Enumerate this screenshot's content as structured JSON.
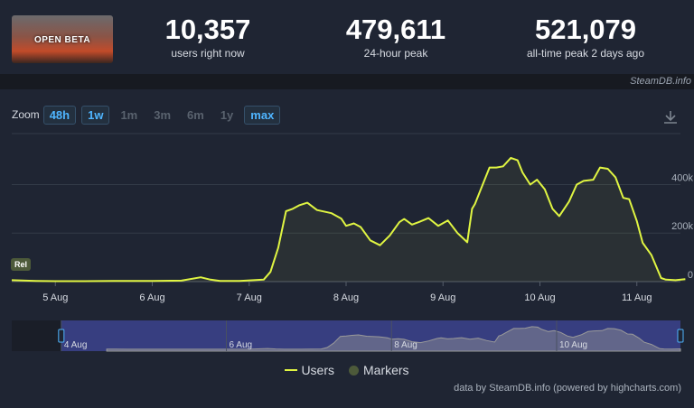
{
  "header": {
    "game_title": "OPEN BETA",
    "stats": [
      {
        "value": "10,357",
        "label": "users right now"
      },
      {
        "value": "479,611",
        "label": "24-hour peak"
      },
      {
        "value": "521,079",
        "label": "all-time peak 2 days ago"
      }
    ],
    "credit": "SteamDB.info"
  },
  "zoom": {
    "label": "Zoom",
    "buttons": [
      {
        "label": "48h",
        "active": true
      },
      {
        "label": "1w",
        "active": true
      },
      {
        "label": "1m",
        "active": false
      },
      {
        "label": "3m",
        "active": false
      },
      {
        "label": "6m",
        "active": false
      },
      {
        "label": "1y",
        "active": false
      },
      {
        "label": "max",
        "active": true
      }
    ]
  },
  "chart_data": {
    "type": "line",
    "series": [
      {
        "name": "Users",
        "color": "#e0f542",
        "x_days": [
          4.55,
          4.8,
          5.0,
          5.3,
          5.6,
          6.0,
          6.3,
          6.5,
          6.6,
          6.7,
          6.9,
          7.15,
          7.22,
          7.3,
          7.38,
          7.45,
          7.52,
          7.6,
          7.7,
          7.85,
          7.95,
          8.0,
          8.08,
          8.15,
          8.25,
          8.35,
          8.45,
          8.55,
          8.6,
          8.68,
          8.75,
          8.85,
          8.95,
          9.05,
          9.15,
          9.25,
          9.3,
          9.33,
          9.4,
          9.48,
          9.55,
          9.62,
          9.7,
          9.77,
          9.82,
          9.9,
          9.97,
          10.05,
          10.13,
          10.2,
          10.3,
          10.38,
          10.45,
          10.55,
          10.62,
          10.7,
          10.78,
          10.86,
          10.92,
          11.0,
          11.06,
          11.15,
          11.25,
          11.3,
          11.4,
          11.5
        ],
        "values": [
          6000,
          3000,
          2000,
          2000,
          3000,
          3000,
          4000,
          18000,
          8000,
          3000,
          3000,
          8000,
          40000,
          140000,
          290000,
          300000,
          315000,
          325000,
          295000,
          282000,
          260000,
          230000,
          240000,
          225000,
          170000,
          150000,
          190000,
          245000,
          258000,
          235000,
          245000,
          262000,
          230000,
          252000,
          200000,
          162000,
          300000,
          320000,
          390000,
          470000,
          470000,
          475000,
          510000,
          500000,
          450000,
          400000,
          420000,
          380000,
          300000,
          270000,
          330000,
          400000,
          415000,
          420000,
          470000,
          465000,
          430000,
          345000,
          340000,
          250000,
          160000,
          110000,
          15000,
          8000,
          6000,
          10357
        ]
      }
    ],
    "markers": [
      {
        "label": "Rel",
        "x_day": 4.55
      }
    ],
    "x_ticks": [
      "5 Aug",
      "6 Aug",
      "7 Aug",
      "8 Aug",
      "9 Aug",
      "10 Aug",
      "11 Aug"
    ],
    "x_tick_days": [
      5,
      6,
      7,
      8,
      9,
      10,
      11
    ],
    "y_ticks": [
      "0",
      "200k",
      "400k"
    ],
    "y_tick_values": [
      0,
      200000,
      400000
    ],
    "x_range_days": [
      4.55,
      11.45
    ],
    "ylim": [
      0,
      610000
    ],
    "navigator": {
      "labels": [
        "4 Aug",
        "6 Aug",
        "8 Aug",
        "10 Aug"
      ],
      "label_days": [
        4,
        6,
        8,
        10
      ],
      "range_days": [
        3.4,
        11.5
      ],
      "selection_days": [
        4.0,
        11.5
      ]
    }
  },
  "legend": [
    {
      "label": "Users",
      "kind": "line"
    },
    {
      "label": "Markers",
      "kind": "dot"
    }
  ],
  "footer": "data by SteamDB.info (powered by highcharts.com)"
}
